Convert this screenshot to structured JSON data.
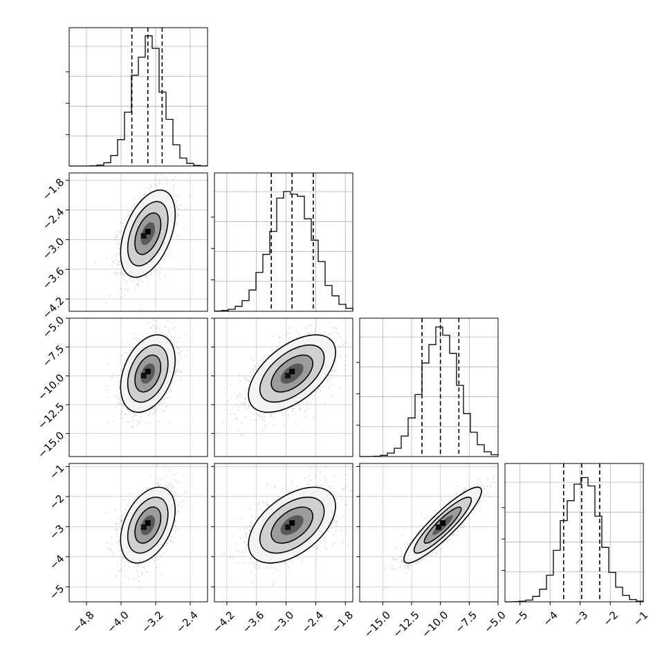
{
  "chart_data": {
    "type": "corner",
    "grid": true,
    "parameters": [
      {
        "index": 0,
        "xlim": [
          -5.2,
          -2.0
        ],
        "ticks": [
          "−4.8",
          "−4.0",
          "−3.2",
          "−2.4"
        ],
        "tick_values": [
          -4.8,
          -4.0,
          -3.2,
          -2.4
        ],
        "quantiles": [
          -3.75,
          -3.38,
          -3.05
        ]
      },
      {
        "index": 1,
        "xlim": [
          -4.45,
          -1.65
        ],
        "ticks": [
          "−4.2",
          "−3.6",
          "−3.0",
          "−2.4",
          "−1.8"
        ],
        "tick_values": [
          -4.2,
          -3.6,
          -3.0,
          -2.4,
          -1.8
        ],
        "quantiles": [
          -3.3,
          -2.88,
          -2.45
        ]
      },
      {
        "index": 2,
        "xlim": [
          -17.0,
          -5.0
        ],
        "ticks": [
          "−15.0",
          "−12.5",
          "−10.0",
          "−7.5",
          "−5.0"
        ],
        "tick_values": [
          -15.0,
          -12.5,
          -10.0,
          -7.5,
          -5.0
        ],
        "quantiles": [
          -11.6,
          -10.0,
          -8.4
        ]
      },
      {
        "index": 3,
        "xlim": [
          -5.5,
          -0.9
        ],
        "ticks": [
          "−5",
          "−4",
          "−3",
          "−2",
          "−1"
        ],
        "tick_values": [
          -5,
          -4,
          -3,
          -2,
          -1
        ],
        "quantiles": [
          -3.55,
          -2.95,
          -2.35
        ]
      }
    ],
    "pairs": [
      {
        "row": 1,
        "col": 0,
        "mean": [
          -3.38,
          -2.88
        ],
        "sd": [
          0.3,
          0.42
        ],
        "rho": 0.45
      },
      {
        "row": 2,
        "col": 0,
        "mean": [
          -3.38,
          -9.8
        ],
        "sd": [
          0.3,
          1.6
        ],
        "rho": 0.35
      },
      {
        "row": 2,
        "col": 1,
        "mean": [
          -2.88,
          -9.8
        ],
        "sd": [
          0.42,
          1.6
        ],
        "rho": 0.55
      },
      {
        "row": 3,
        "col": 0,
        "mean": [
          -3.38,
          -2.95
        ],
        "sd": [
          0.3,
          0.6
        ],
        "rho": 0.4
      },
      {
        "row": 3,
        "col": 1,
        "mean": [
          -2.88,
          -2.95
        ],
        "sd": [
          0.42,
          0.6
        ],
        "rho": 0.5
      },
      {
        "row": 3,
        "col": 2,
        "mean": [
          -9.8,
          -2.95
        ],
        "sd": [
          1.6,
          0.6
        ],
        "rho": 0.9
      }
    ]
  }
}
